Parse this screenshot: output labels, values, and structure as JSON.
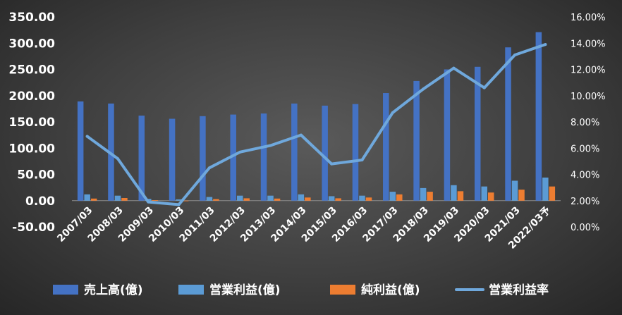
{
  "chart_data": {
    "type": "bar",
    "categories": [
      "2007/03",
      "2008/03",
      "2009/03",
      "2010/03",
      "2011/03",
      "2012/03",
      "2013/03",
      "2014/03",
      "2015/03",
      "2016/03",
      "2017/03",
      "2018/03",
      "2019/03",
      "2020/03",
      "2021/03",
      "2022/03予"
    ],
    "series": [
      {
        "name": "売上高(億)",
        "type": "bar",
        "axis": "left",
        "color": "#4472C4",
        "values": [
          189,
          185,
          162,
          156,
          161,
          164,
          166,
          185,
          181,
          184,
          205,
          228,
          250,
          255,
          292,
          321
        ]
      },
      {
        "name": "営業利益(億)",
        "type": "bar",
        "axis": "left",
        "color": "#5B9BD5",
        "values": [
          12,
          9.5,
          3.5,
          2.5,
          7,
          9.5,
          9.5,
          12,
          8.5,
          9.5,
          17,
          24,
          29.5,
          27,
          38,
          44
        ]
      },
      {
        "name": "純利益(億)",
        "type": "bar",
        "axis": "left",
        "color": "#ED7D31",
        "values": [
          4,
          5,
          1,
          -1,
          3,
          4.5,
          4,
          6,
          4.5,
          6,
          12,
          17,
          18,
          15.5,
          21,
          27
        ]
      },
      {
        "name": "営業利益率",
        "type": "line",
        "axis": "right",
        "color": "#6FA8DC",
        "values": [
          0.069,
          0.052,
          0.019,
          0.017,
          0.045,
          0.057,
          0.062,
          0.07,
          0.048,
          0.051,
          0.087,
          0.105,
          0.121,
          0.106,
          0.131,
          0.139
        ]
      }
    ],
    "yticks_left": [
      "350.00",
      "300.00",
      "250.00",
      "200.00",
      "150.00",
      "100.00",
      "50.00",
      "0.00",
      "-50.00"
    ],
    "yticks_right": [
      "16.00%",
      "14.00%",
      "12.00%",
      "10.00%",
      "8.00%",
      "6.00%",
      "4.00%",
      "2.00%",
      "0.00%"
    ],
    "ylim_left": [
      -50,
      350
    ],
    "ylim_right": [
      0,
      0.16
    ],
    "legend_position": "bottom",
    "grid": false
  }
}
